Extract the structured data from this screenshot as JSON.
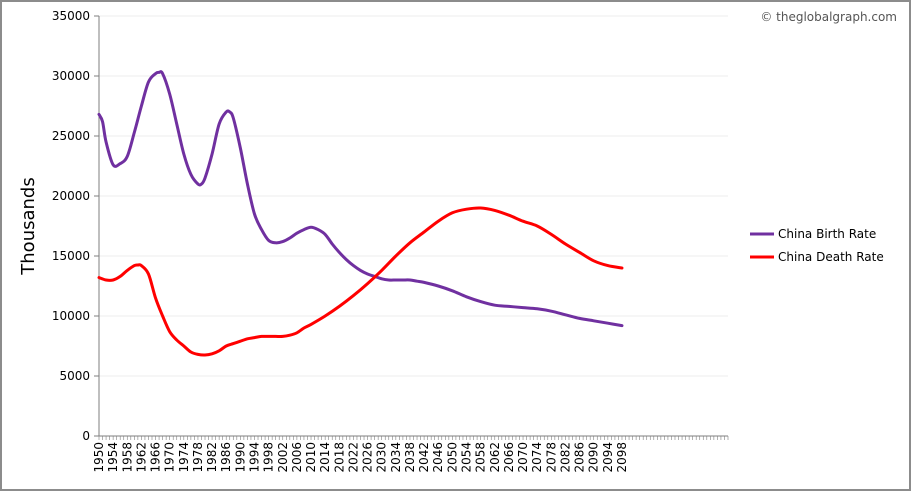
{
  "credit": "© theglobalgraph.com",
  "chart_data": {
    "type": "line",
    "title": "",
    "xlabel": "",
    "ylabel": "Thousands",
    "ylim": [
      0,
      35000
    ],
    "yticks": [
      0,
      5000,
      10000,
      15000,
      20000,
      25000,
      30000,
      35000
    ],
    "xticks": [
      1950,
      1954,
      1958,
      1962,
      1966,
      1970,
      1974,
      1978,
      1982,
      1986,
      1990,
      1994,
      1998,
      2002,
      2006,
      2010,
      2014,
      2018,
      2022,
      2026,
      2030,
      2034,
      2038,
      2042,
      2046,
      2050,
      2054,
      2058,
      2062,
      2066,
      2070,
      2074,
      2078,
      2082,
      2086,
      2090,
      2094,
      2098
    ],
    "xlim": [
      1950,
      2128
    ],
    "grid": true,
    "legend_position": "right",
    "series": [
      {
        "name": "China Birth Rate",
        "color": "#7030a0",
        "x": [
          1950,
          1951,
          1952,
          1954,
          1956,
          1958,
          1960,
          1962,
          1964,
          1966,
          1967,
          1968,
          1970,
          1972,
          1974,
          1976,
          1978,
          1979,
          1980,
          1982,
          1984,
          1986,
          1987,
          1988,
          1990,
          1992,
          1994,
          1996,
          1998,
          2000,
          2002,
          2004,
          2006,
          2008,
          2010,
          2012,
          2014,
          2016,
          2018,
          2020,
          2022,
          2024,
          2026,
          2028,
          2030,
          2032,
          2034,
          2036,
          2038,
          2040,
          2042,
          2046,
          2050,
          2054,
          2058,
          2062,
          2066,
          2070,
          2074,
          2078,
          2082,
          2086,
          2090,
          2094,
          2098
        ],
        "y": [
          26800,
          26200,
          24500,
          22600,
          22700,
          23300,
          25300,
          27500,
          29500,
          30200,
          30300,
          30200,
          28500,
          26000,
          23500,
          21800,
          21000,
          21000,
          21500,
          23500,
          26000,
          27000,
          27000,
          26500,
          24000,
          21000,
          18500,
          17200,
          16300,
          16100,
          16200,
          16500,
          16900,
          17200,
          17400,
          17200,
          16800,
          16000,
          15300,
          14700,
          14200,
          13800,
          13500,
          13300,
          13100,
          13000,
          13000,
          13000,
          13000,
          12900,
          12800,
          12500,
          12100,
          11600,
          11200,
          10900,
          10800,
          10700,
          10600,
          10400,
          10100,
          9800,
          9600,
          9400,
          9200
        ]
      },
      {
        "name": "China Death Rate",
        "color": "#ff0000",
        "x": [
          1950,
          1952,
          1954,
          1956,
          1958,
          1960,
          1961,
          1962,
          1964,
          1966,
          1968,
          1970,
          1972,
          1974,
          1976,
          1978,
          1980,
          1982,
          1984,
          1986,
          1988,
          1990,
          1992,
          1994,
          1996,
          1998,
          2000,
          2002,
          2004,
          2006,
          2008,
          2010,
          2014,
          2018,
          2022,
          2026,
          2030,
          2034,
          2038,
          2042,
          2046,
          2050,
          2054,
          2058,
          2062,
          2066,
          2070,
          2074,
          2078,
          2082,
          2086,
          2090,
          2094,
          2098
        ],
        "y": [
          13200,
          13000,
          13000,
          13300,
          13800,
          14200,
          14250,
          14200,
          13500,
          11500,
          10000,
          8700,
          8000,
          7500,
          7000,
          6800,
          6750,
          6850,
          7100,
          7500,
          7700,
          7900,
          8100,
          8200,
          8300,
          8300,
          8300,
          8300,
          8400,
          8600,
          9000,
          9300,
          10000,
          10800,
          11700,
          12700,
          13800,
          15000,
          16100,
          17000,
          17900,
          18600,
          18900,
          19000,
          18800,
          18400,
          17900,
          17500,
          16800,
          16000,
          15300,
          14600,
          14200,
          14000
        ]
      }
    ]
  }
}
